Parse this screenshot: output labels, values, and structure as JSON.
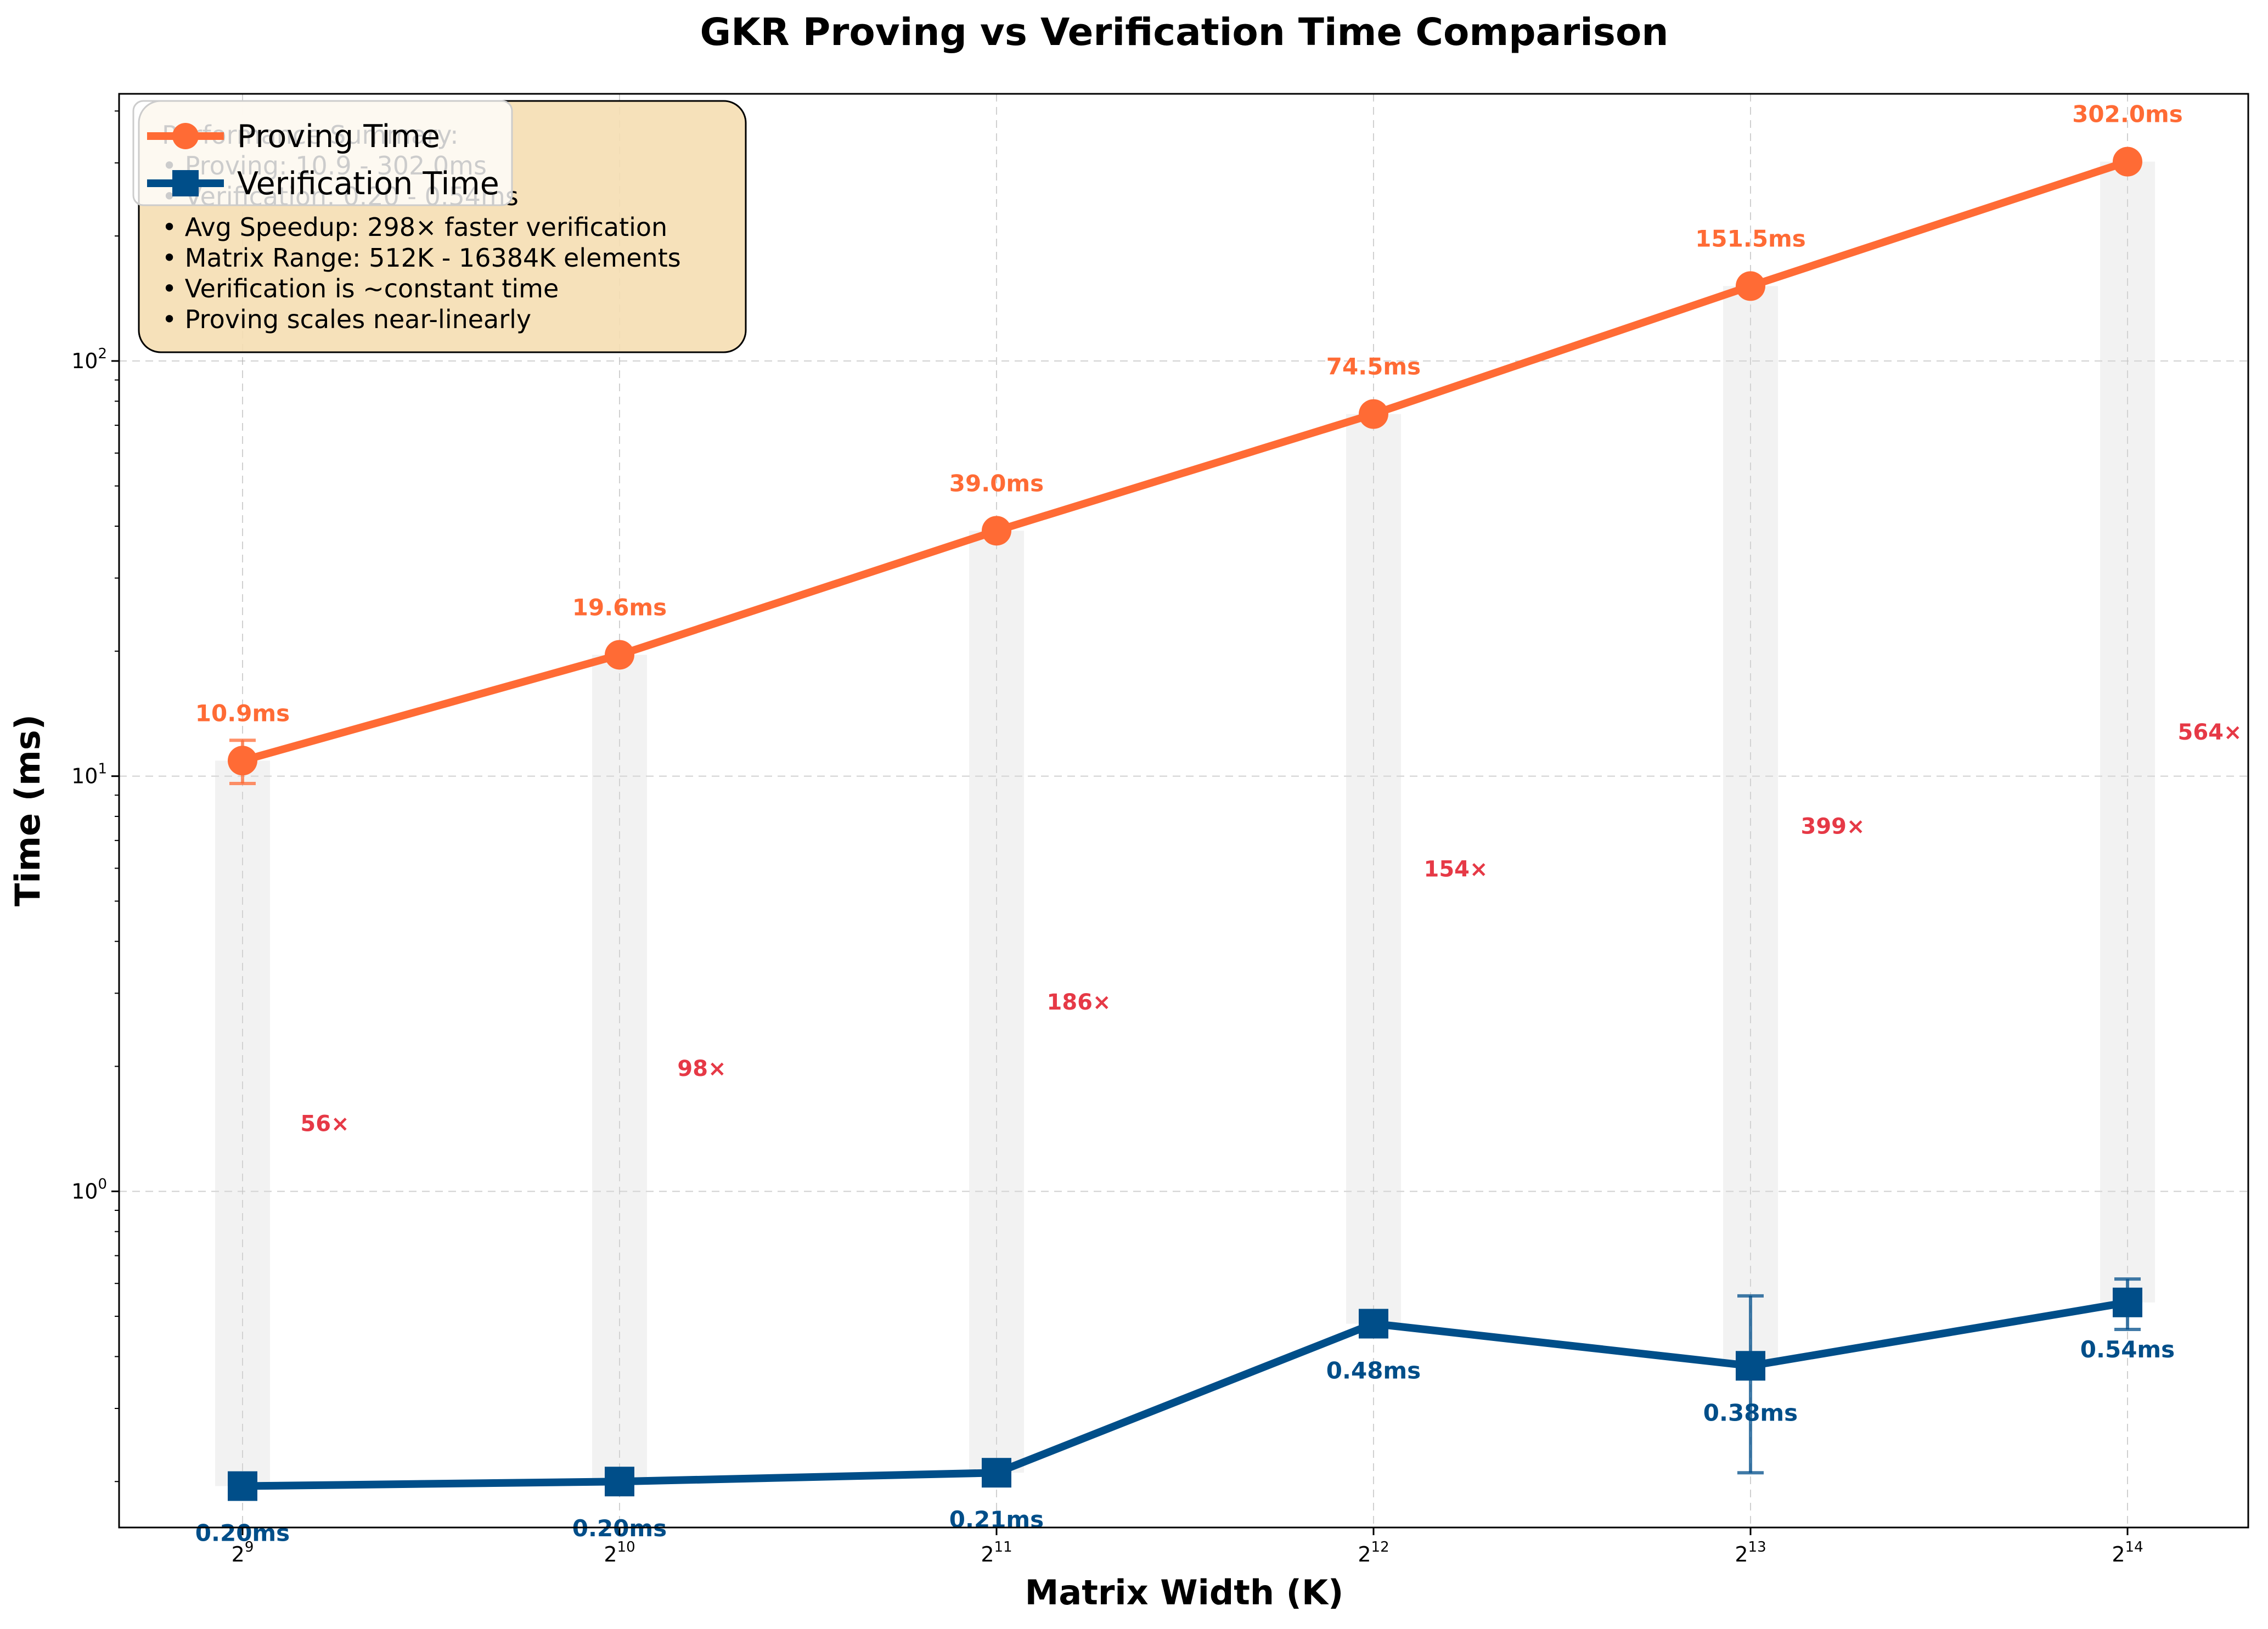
{
  "chart_data": {
    "type": "line",
    "title": "GKR Proving vs Verification Time Comparison",
    "xlabel": "Matrix Width (K)",
    "ylabel": "Time (ms)",
    "x": [
      512,
      1024,
      2048,
      4096,
      8192,
      16384
    ],
    "x_ticks": [
      {
        "base": "2",
        "exp": "9"
      },
      {
        "base": "2",
        "exp": "10"
      },
      {
        "base": "2",
        "exp": "11"
      },
      {
        "base": "2",
        "exp": "12"
      },
      {
        "base": "2",
        "exp": "13"
      },
      {
        "base": "2",
        "exp": "14"
      }
    ],
    "x_scale": "log2",
    "y_scale": "log10",
    "ylim": [
      0.155,
      440
    ],
    "y_ticks": [
      {
        "value": 1,
        "base": "10",
        "exp": "0"
      },
      {
        "value": 10,
        "base": "10",
        "exp": "1"
      },
      {
        "value": 100,
        "base": "10",
        "exp": "2"
      }
    ],
    "grid": true,
    "legend_position": "top-left",
    "series": [
      {
        "name": "Proving Time",
        "color": "#FF6B35",
        "marker": "circle",
        "values": [
          10.9,
          19.6,
          39.0,
          74.5,
          151.5,
          302.0
        ],
        "labels": [
          "10.9ms",
          "19.6ms",
          "39.0ms",
          "74.5ms",
          "151.5ms",
          "302.0ms"
        ],
        "error_bars": [
          [
            9.6,
            12.2
          ],
          null,
          null,
          null,
          null,
          null
        ]
      },
      {
        "name": "Verification Time",
        "color": "#004E89",
        "marker": "square",
        "values": [
          0.195,
          0.2,
          0.21,
          0.48,
          0.38,
          0.54
        ],
        "labels": [
          "0.20ms",
          "0.20ms",
          "0.21ms",
          "0.48ms",
          "0.38ms",
          "0.54ms"
        ],
        "error_bars": [
          null,
          null,
          null,
          null,
          [
            0.21,
            0.56
          ],
          [
            0.465,
            0.615
          ]
        ]
      }
    ],
    "speedup_labels": [
      "56×",
      "98×",
      "186×",
      "154×",
      "399×",
      "564×"
    ],
    "speedup_color": "#E63946",
    "summary_box": {
      "lines": [
        "Performance Summary:",
        "• Proving: 10.9 - 302.0ms",
        "• Verification: 0.20 - 0.54ms",
        "• Avg Speedup: 298× faster verification",
        "• Matrix Range: 512K - 16384K elements",
        "• Verification is ~constant time",
        "• Proving scales near-linearly"
      ],
      "background": "#F5DEB3"
    }
  }
}
